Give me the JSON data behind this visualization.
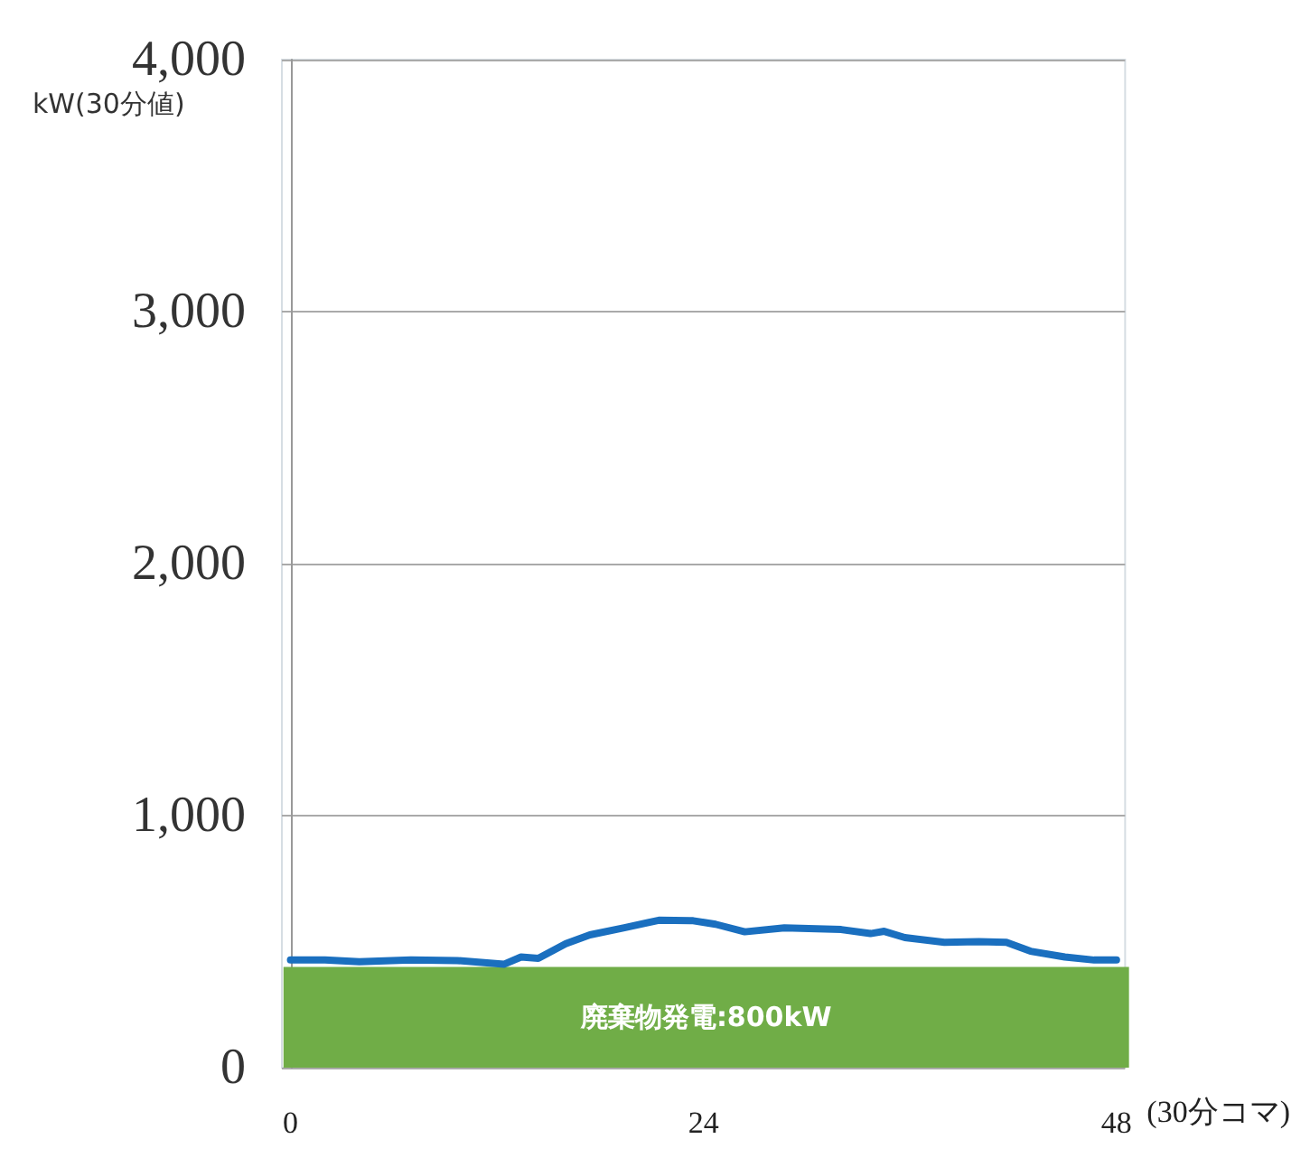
{
  "chart_data": {
    "type": "line",
    "ylabel": "kW(30分値)",
    "xlabel": "(30分コマ)",
    "x": [
      0,
      2,
      4,
      7,
      9.7,
      12.4,
      13.4,
      14.4,
      16,
      17.4,
      19.4,
      21.4,
      23.4,
      24.7,
      26.4,
      28.7,
      32,
      33.7,
      34.5,
      35.7,
      38,
      40,
      41.6,
      43,
      45,
      46.7,
      48
    ],
    "series": [
      {
        "color": "#1a6fbf",
        "values": [
          427,
          427,
          420,
          427,
          425,
          410,
          439,
          434,
          492,
          527,
          555,
          585,
          583,
          569,
          539,
          555,
          548,
          532,
          541,
          516,
          497,
          500,
          497,
          462,
          439,
          427,
          427
        ]
      }
    ],
    "xlim": [
      -0.5,
      48.5
    ],
    "xticks": [
      0,
      24,
      48
    ],
    "ylim": [
      0,
      4000
    ],
    "yticks": [
      0,
      {
        "value": 1000,
        "label": "1,000"
      },
      {
        "value": 2000,
        "label": "2,000"
      },
      {
        "value": 3000,
        "label": "3,000"
      },
      {
        "value": 4000,
        "label": "4,000"
      }
    ],
    "bands": [
      {
        "axis": "y",
        "from": 0,
        "to": 400,
        "label": "廃棄物発電:800kW",
        "color": "#70ad47"
      }
    ],
    "grid": "y",
    "marker": "none",
    "line_style": "solid"
  }
}
